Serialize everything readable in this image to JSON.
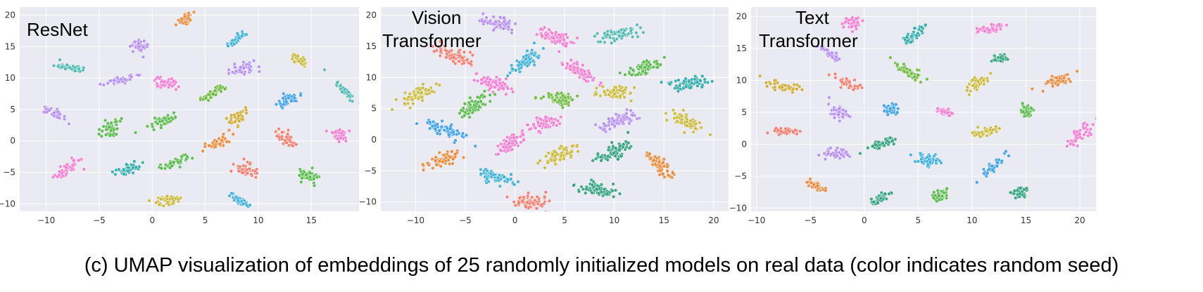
{
  "caption": "(c) UMAP visualization of embeddings of 25 randomly initialized models on real data (color indicates random seed)",
  "colors": {
    "background": "#eaeaf2",
    "grid": "#ffffff",
    "seed_palette": [
      "#e8883a",
      "#3aaed8",
      "#f27ad0",
      "#b28cf2",
      "#54b848",
      "#cfa92e",
      "#f27a6a",
      "#4bb8b0",
      "#2e9e7a",
      "#3a9ee8",
      "#c9b83a",
      "#6ab838",
      "#2aa8a8"
    ]
  },
  "chart_data": [
    {
      "type": "scatter",
      "title": "ResNet",
      "xlim": [
        -12.5,
        19.5
      ],
      "ylim": [
        -11.2,
        21.3
      ],
      "xticks": [
        -10,
        -5,
        0,
        5,
        10,
        15
      ],
      "yticks": [
        -10,
        -5,
        0,
        5,
        10,
        15,
        20
      ],
      "grid": true,
      "clusters": [
        {
          "x": 3.2,
          "y": 19.3,
          "color": "#e8883a"
        },
        {
          "x": 8.0,
          "y": 16.2,
          "color": "#3aaed8"
        },
        {
          "x": -1.4,
          "y": 15.2,
          "color": "#b28cf2"
        },
        {
          "x": -7.6,
          "y": 11.6,
          "color": "#4bb8b0"
        },
        {
          "x": 14.1,
          "y": 12.6,
          "color": "#c9b83a"
        },
        {
          "x": 8.5,
          "y": 11.6,
          "color": "#b28cf2"
        },
        {
          "x": -2.9,
          "y": 9.7,
          "color": "#b28cf2"
        },
        {
          "x": 1.3,
          "y": 9.2,
          "color": "#f27ad0"
        },
        {
          "x": 18.2,
          "y": 7.8,
          "color": "#4bb8b0"
        },
        {
          "x": 5.8,
          "y": 7.6,
          "color": "#6ab838"
        },
        {
          "x": 12.8,
          "y": 6.4,
          "color": "#3a9ee8"
        },
        {
          "x": -9.2,
          "y": 4.3,
          "color": "#b28cf2"
        },
        {
          "x": 8.1,
          "y": 3.9,
          "color": "#cfa92e"
        },
        {
          "x": 1.1,
          "y": 3.2,
          "color": "#54b848"
        },
        {
          "x": -3.9,
          "y": 2.2,
          "color": "#54b848"
        },
        {
          "x": 17.6,
          "y": 1.0,
          "color": "#f27ad0"
        },
        {
          "x": 12.6,
          "y": 0.4,
          "color": "#f27a6a"
        },
        {
          "x": 6.1,
          "y": -0.3,
          "color": "#e8883a"
        },
        {
          "x": 2.2,
          "y": -3.4,
          "color": "#54b848"
        },
        {
          "x": -7.9,
          "y": -4.4,
          "color": "#f27ad0"
        },
        {
          "x": -2.3,
          "y": -4.5,
          "color": "#2aa8a8"
        },
        {
          "x": 8.8,
          "y": -4.6,
          "color": "#f27a6a"
        },
        {
          "x": 14.8,
          "y": -5.6,
          "color": "#54b848"
        },
        {
          "x": 1.5,
          "y": -9.5,
          "color": "#c9b83a"
        },
        {
          "x": 8.2,
          "y": -9.5,
          "color": "#3aaed8"
        }
      ]
    },
    {
      "type": "scatter",
      "title": "Vision\nTransformer",
      "xlim": [
        -13.5,
        21.5
      ],
      "ylim": [
        -11.5,
        21.3
      ],
      "xticks": [
        -10,
        -5,
        0,
        5,
        10,
        15,
        20
      ],
      "yticks": [
        -10,
        -5,
        0,
        5,
        10,
        15,
        20
      ],
      "grid": true,
      "clusters": [
        {
          "x": -1.5,
          "y": 18.5,
          "color": "#b28cf2"
        },
        {
          "x": 4.0,
          "y": 16.5,
          "color": "#f27ad0"
        },
        {
          "x": 10.5,
          "y": 17.0,
          "color": "#4bb8b0"
        },
        {
          "x": -6.0,
          "y": 13.5,
          "color": "#f27a6a"
        },
        {
          "x": 1.0,
          "y": 12.5,
          "color": "#3aaed8"
        },
        {
          "x": 6.5,
          "y": 11.0,
          "color": "#f27ad0"
        },
        {
          "x": 13.0,
          "y": 11.5,
          "color": "#54b848"
        },
        {
          "x": -2.0,
          "y": 9.0,
          "color": "#f27ad0"
        },
        {
          "x": 17.5,
          "y": 9.0,
          "color": "#2aa8a8"
        },
        {
          "x": -10.0,
          "y": 7.0,
          "color": "#c9b83a"
        },
        {
          "x": 4.5,
          "y": 6.5,
          "color": "#6ab838"
        },
        {
          "x": 10.0,
          "y": 7.5,
          "color": "#c9b83a"
        },
        {
          "x": -4.0,
          "y": 5.5,
          "color": "#54b848"
        },
        {
          "x": 3.0,
          "y": 2.5,
          "color": "#f27ad0"
        },
        {
          "x": 10.5,
          "y": 3.0,
          "color": "#b28cf2"
        },
        {
          "x": 17.0,
          "y": 3.0,
          "color": "#c9b83a"
        },
        {
          "x": -7.0,
          "y": 1.5,
          "color": "#3a9ee8"
        },
        {
          "x": -0.5,
          "y": -0.5,
          "color": "#f27ad0"
        },
        {
          "x": 10.0,
          "y": -2.0,
          "color": "#2e9e7a"
        },
        {
          "x": -7.0,
          "y": -3.0,
          "color": "#e8883a"
        },
        {
          "x": 4.5,
          "y": -2.5,
          "color": "#c9b83a"
        },
        {
          "x": 14.5,
          "y": -4.0,
          "color": "#e8883a"
        },
        {
          "x": -2.0,
          "y": -6.0,
          "color": "#3aaed8"
        },
        {
          "x": 8.5,
          "y": -8.0,
          "color": "#2e9e7a"
        },
        {
          "x": 1.5,
          "y": -10.0,
          "color": "#f27a6a"
        }
      ]
    },
    {
      "type": "scatter",
      "title": "Text\nTransformer",
      "xlim": [
        -10.5,
        21.5
      ],
      "ylim": [
        -10.5,
        21.5
      ],
      "xticks": [
        -10,
        -5,
        0,
        5,
        10,
        15,
        20
      ],
      "yticks": [
        -10,
        -5,
        0,
        5,
        10,
        15,
        20
      ],
      "grid": true,
      "clusters": [
        {
          "x": -1.0,
          "y": 19.0,
          "color": "#f27ad0"
        },
        {
          "x": 11.5,
          "y": 18.0,
          "color": "#f27ad0"
        },
        {
          "x": 4.5,
          "y": 17.0,
          "color": "#2aa8a8"
        },
        {
          "x": -3.0,
          "y": 14.0,
          "color": "#b28cf2"
        },
        {
          "x": 12.5,
          "y": 13.5,
          "color": "#2e9e7a"
        },
        {
          "x": 4.0,
          "y": 11.5,
          "color": "#6ab838"
        },
        {
          "x": -7.5,
          "y": 9.0,
          "color": "#cfa92e"
        },
        {
          "x": -1.5,
          "y": 9.5,
          "color": "#f27a6a"
        },
        {
          "x": 10.5,
          "y": 9.5,
          "color": "#c9b83a"
        },
        {
          "x": 18.0,
          "y": 10.0,
          "color": "#e8883a"
        },
        {
          "x": 2.5,
          "y": 5.5,
          "color": "#3a9ee8"
        },
        {
          "x": -2.5,
          "y": 5.0,
          "color": "#b28cf2"
        },
        {
          "x": 7.5,
          "y": 5.0,
          "color": "#f27ad0"
        },
        {
          "x": 15.0,
          "y": 5.0,
          "color": "#54b848"
        },
        {
          "x": -7.5,
          "y": 2.0,
          "color": "#f27a6a"
        },
        {
          "x": 11.5,
          "y": 2.0,
          "color": "#c9b83a"
        },
        {
          "x": 20.0,
          "y": 1.5,
          "color": "#f27ad0"
        },
        {
          "x": 1.5,
          "y": 0.0,
          "color": "#2e9e7a"
        },
        {
          "x": -2.5,
          "y": -1.5,
          "color": "#b28cf2"
        },
        {
          "x": 6.0,
          "y": -2.5,
          "color": "#3aaed8"
        },
        {
          "x": 12.0,
          "y": -3.5,
          "color": "#3a9ee8"
        },
        {
          "x": -4.5,
          "y": -6.5,
          "color": "#e8883a"
        },
        {
          "x": 14.5,
          "y": -7.5,
          "color": "#2e9e7a"
        },
        {
          "x": 1.5,
          "y": -8.5,
          "color": "#2e9e7a"
        },
        {
          "x": 7.0,
          "y": -8.0,
          "color": "#54b848"
        }
      ]
    }
  ]
}
